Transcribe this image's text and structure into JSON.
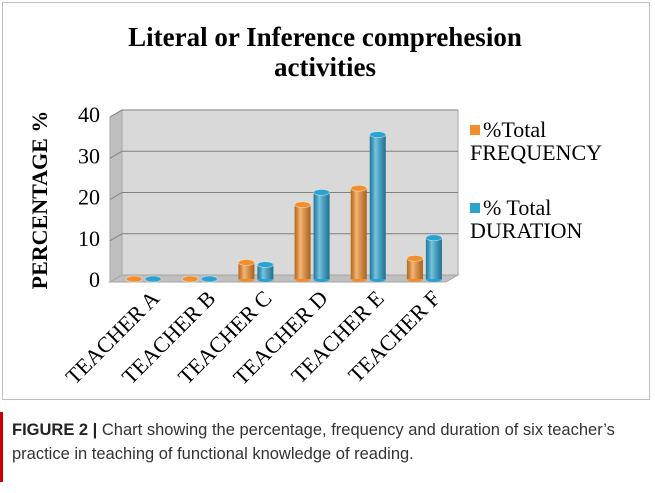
{
  "chart_data": {
    "type": "bar3d",
    "title": "Literal or Inference comprehesion activities",
    "y_label": "PERCENTAGE %",
    "categories": [
      "TEACHER A",
      "TEACHER B",
      "TEACHER C",
      "TEACHER D",
      "TEACHER E",
      "TEACHER F"
    ],
    "series": [
      {
        "name": "%Total FREQUENCY",
        "color": "#f28e2b",
        "values": [
          0,
          0,
          4,
          18,
          22,
          5
        ]
      },
      {
        "name": "% Total DURATION",
        "color": "#2aa3d0",
        "values": [
          0,
          0,
          3.5,
          21,
          35,
          10
        ]
      }
    ],
    "ylim": [
      0,
      40
    ],
    "yticks": [
      0,
      10,
      20,
      30,
      40
    ],
    "grid": true
  },
  "caption": {
    "label": "FIGURE 2 |",
    "text": "Chart showing the percentage, frequency and duration of six teacher’s practice in teaching of functional knowledge of reading."
  }
}
